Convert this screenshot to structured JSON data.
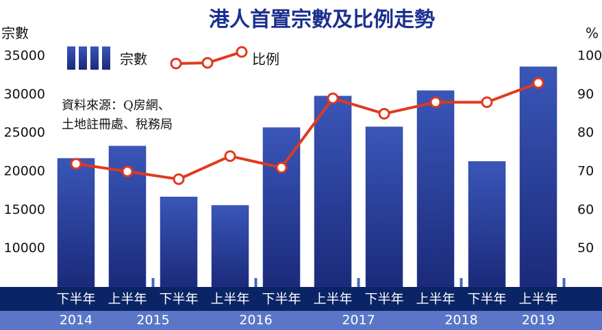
{
  "chart_data": {
    "type": "bar",
    "title": "港人首置宗數及比例走勢",
    "y_label": "宗數",
    "y2_label": "%",
    "categories": [
      "下半年",
      "上半年",
      "下半年",
      "上半年",
      "下半年",
      "上半年",
      "下半年",
      "上半年",
      "下半年",
      "上半年"
    ],
    "years": [
      "2014",
      "2015",
      "2016",
      "2017",
      "2018",
      "2019"
    ],
    "series": [
      {
        "name": "宗數",
        "type": "bar",
        "color": "#2a3f9e",
        "values": [
          21700,
          23300,
          16700,
          15600,
          25700,
          29800,
          25800,
          30500,
          21300,
          33600
        ]
      },
      {
        "name": "比例",
        "type": "line",
        "axis": "y2",
        "color": "#e0391e",
        "values": [
          72,
          70,
          68,
          74,
          71,
          89,
          85,
          88,
          88,
          93
        ]
      }
    ],
    "ylim": [
      5000,
      36000
    ],
    "yticks": [
      10000,
      15000,
      20000,
      25000,
      30000,
      35000
    ],
    "y2lim": [
      40,
      102
    ],
    "y2ticks": [
      50,
      60,
      70,
      80,
      90,
      100
    ],
    "annotation": [
      "資料來源：Q房網、",
      "土地註冊處、稅務局"
    ]
  }
}
